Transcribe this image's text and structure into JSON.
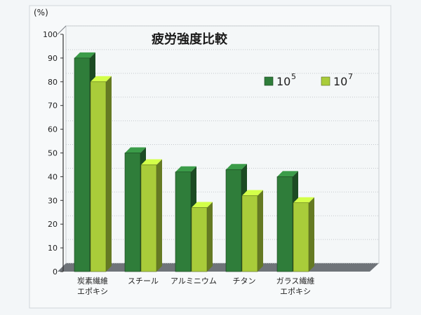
{
  "chart_data": {
    "type": "bar",
    "title": "疲労強度比較",
    "ylabel": "(%)",
    "xlabel": "",
    "ylim": [
      0,
      100
    ],
    "yticks": [
      0,
      10,
      20,
      30,
      40,
      50,
      60,
      70,
      80,
      90,
      100
    ],
    "categories": [
      [
        "炭素繊維",
        "エポキシ"
      ],
      [
        "スチール"
      ],
      [
        "アルミニウム"
      ],
      [
        "チタン"
      ],
      [
        "ガラス繊維",
        "エポキシ"
      ]
    ],
    "series": [
      {
        "name": "10",
        "exp": "5",
        "color": "#2f7d3a",
        "values": [
          90,
          50,
          42,
          43,
          40
        ]
      },
      {
        "name": "10",
        "exp": "7",
        "color": "#a9cc3a",
        "values": [
          80,
          45,
          27,
          32,
          29
        ]
      }
    ],
    "grid": true,
    "legend_position": "top-right"
  }
}
